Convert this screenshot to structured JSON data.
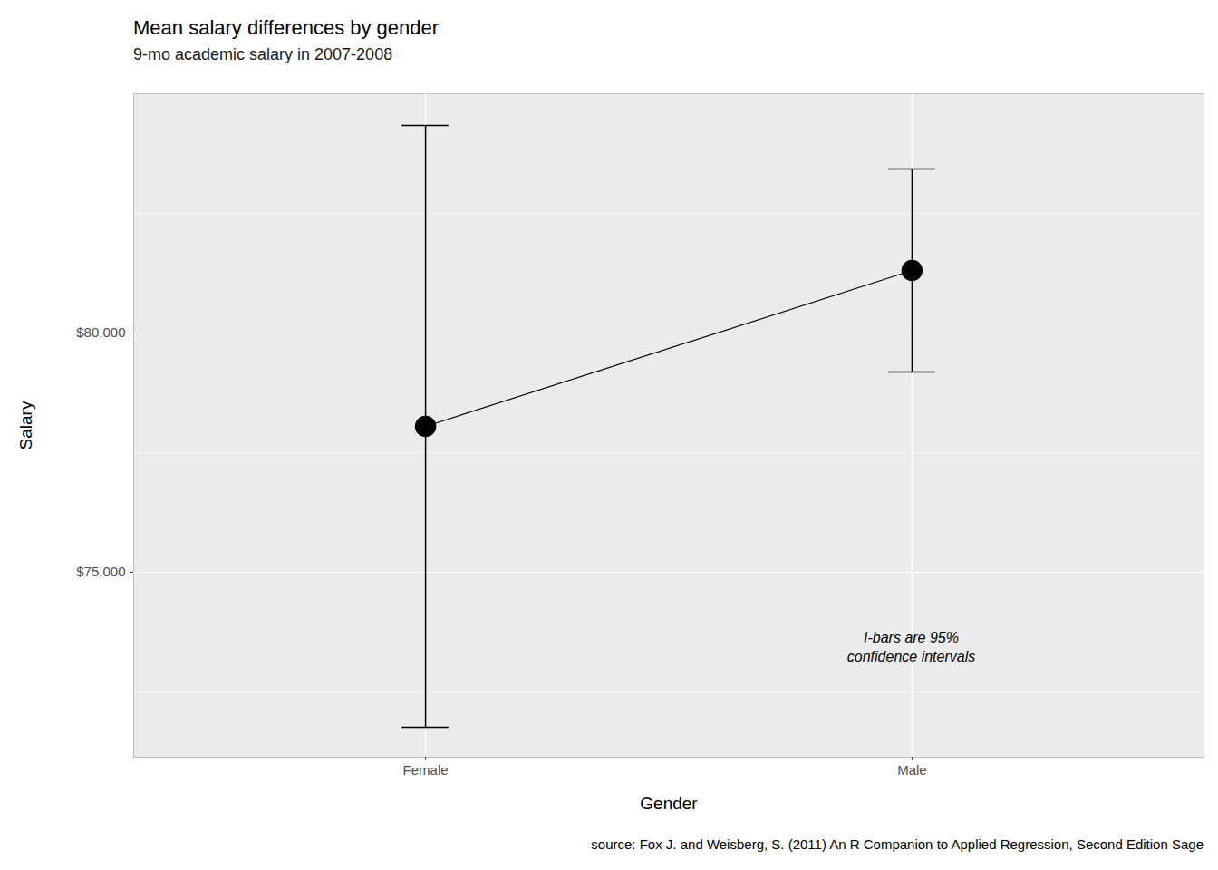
{
  "chart_data": {
    "type": "line",
    "title": "Mean salary differences by gender",
    "subtitle": "9-mo academic salary in 2007-2008",
    "x_label": "Gender",
    "y_label": "Salary",
    "caption": "source: Fox J. and Weisberg, S. (2011) An R Companion to Applied Regression, Second Edition Sage",
    "annotation": "I-bars are 95%\nconfidence intervals",
    "categories": [
      "Female",
      "Male"
    ],
    "values": [
      78049,
      81307
    ],
    "error_low": [
      71761,
      79186
    ],
    "error_high": [
      84337,
      83428
    ],
    "color": "#000000",
    "marker": "circle",
    "ylim": [
      71136,
      85000
    ],
    "yticks": [
      {
        "value": 75000,
        "label": "$75,000"
      },
      {
        "value": 80000,
        "label": "$80,000"
      }
    ],
    "grid": true
  }
}
